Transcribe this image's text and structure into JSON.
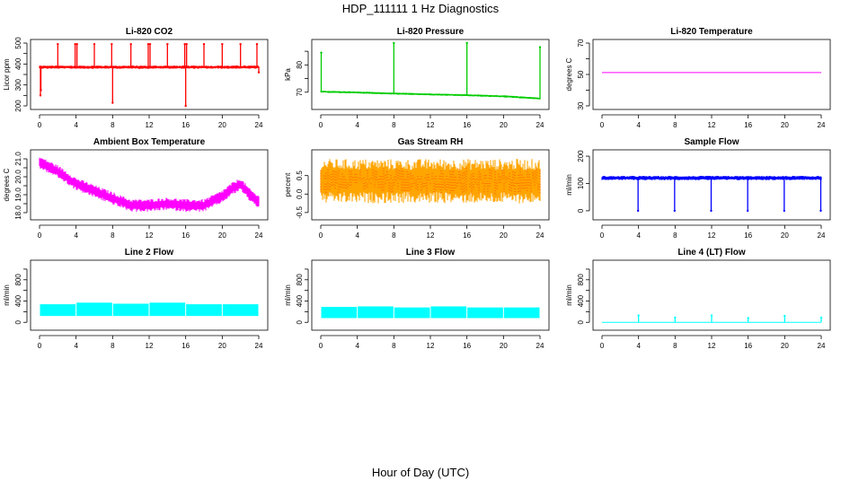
{
  "figure": {
    "title": "HDP_111111  1 Hz Diagnostics",
    "xlabel": "Hour of Day (UTC)"
  },
  "chart_data": [
    {
      "id": "co2",
      "type": "line",
      "title": "Li-820 CO2",
      "ylabel": "Licor ppm",
      "color": "#ff0000",
      "xlim": [
        0,
        24
      ],
      "ylim": [
        200,
        500
      ],
      "xticks": [
        0,
        4,
        8,
        12,
        16,
        20,
        24
      ],
      "yticks": [
        200,
        250,
        300,
        350,
        400,
        450,
        500
      ],
      "ytick_labels": [
        "200",
        "",
        "300",
        "",
        "400",
        "",
        "500"
      ],
      "baseline": [
        [
          0,
          385
        ],
        [
          4,
          385
        ],
        [
          8,
          385
        ],
        [
          12,
          385
        ],
        [
          16,
          385
        ],
        [
          20,
          385
        ],
        [
          24,
          385
        ]
      ],
      "band": 8,
      "spikes": [
        [
          0.1,
          250
        ],
        [
          0.15,
          275
        ],
        [
          2.0,
          495
        ],
        [
          3.9,
          495
        ],
        [
          4.1,
          495
        ],
        [
          6.0,
          495
        ],
        [
          7.9,
          495
        ],
        [
          8.0,
          215
        ],
        [
          10.0,
          495
        ],
        [
          11.9,
          495
        ],
        [
          12.1,
          495
        ],
        [
          14.0,
          495
        ],
        [
          15.9,
          495
        ],
        [
          16.0,
          200
        ],
        [
          16.1,
          495
        ],
        [
          18.0,
          495
        ],
        [
          20.0,
          495
        ],
        [
          22.0,
          495
        ],
        [
          23.8,
          495
        ],
        [
          24.0,
          360
        ]
      ]
    },
    {
      "id": "pressure",
      "type": "line",
      "title": "Li-820 Pressure",
      "ylabel": "kPa",
      "color": "#00cc00",
      "xlim": [
        0,
        24
      ],
      "ylim": [
        65,
        88
      ],
      "xticks": [
        0,
        4,
        8,
        12,
        16,
        20,
        24
      ],
      "yticks": [
        70,
        75,
        80,
        85
      ],
      "ytick_labels": [
        "70",
        "",
        "80",
        ""
      ],
      "baseline": [
        [
          0,
          70.2
        ],
        [
          4,
          69.9
        ],
        [
          8,
          69.5
        ],
        [
          12,
          69.2
        ],
        [
          16,
          68.9
        ],
        [
          20,
          68.5
        ],
        [
          24,
          67.7
        ]
      ],
      "band": 0.4,
      "spikes": [
        [
          0.05,
          84.5
        ],
        [
          8.0,
          88
        ],
        [
          16.0,
          88
        ],
        [
          24.0,
          86.5
        ]
      ]
    },
    {
      "id": "licor_temp",
      "type": "line",
      "title": "Li-820 Temperature",
      "ylabel": "degrees C",
      "color": "#ff00ff",
      "xlim": [
        0,
        24
      ],
      "ylim": [
        30,
        70
      ],
      "xticks": [
        0,
        4,
        8,
        12,
        16,
        20,
        24
      ],
      "yticks": [
        30,
        40,
        50,
        60,
        70
      ],
      "ytick_labels": [
        "30",
        "",
        "50",
        "",
        "70"
      ],
      "baseline": [
        [
          0,
          51.2
        ],
        [
          24,
          51.2
        ]
      ],
      "band": 0,
      "spikes": []
    },
    {
      "id": "box_temp",
      "type": "line",
      "title": "Ambient Box Temperature",
      "ylabel": "degrees C",
      "color": "#ff00ff",
      "xlim": [
        0,
        24
      ],
      "ylim": [
        17.8,
        21.3
      ],
      "xticks": [
        0,
        4,
        8,
        12,
        16,
        20,
        24
      ],
      "yticks": [
        18.0,
        18.5,
        19.0,
        19.5,
        20.0,
        20.5,
        21.0
      ],
      "ytick_labels": [
        "18.0",
        "",
        "19.0",
        "",
        "20.0",
        "",
        "21.0"
      ],
      "baseline": [
        [
          0,
          20.8
        ],
        [
          2,
          20.3
        ],
        [
          4,
          19.6
        ],
        [
          6,
          19.2
        ],
        [
          8,
          18.8
        ],
        [
          10,
          18.4
        ],
        [
          12,
          18.4
        ],
        [
          14,
          18.5
        ],
        [
          16,
          18.4
        ],
        [
          18,
          18.4
        ],
        [
          20,
          18.9
        ],
        [
          21,
          19.3
        ],
        [
          22,
          19.6
        ],
        [
          23,
          19.0
        ],
        [
          24,
          18.6
        ]
      ],
      "band": 0.35,
      "spikes": []
    },
    {
      "id": "rh",
      "type": "line",
      "title": "Gas Stream RH",
      "ylabel": "percent",
      "color": "#ffa500",
      "color2": "#ff0000",
      "xlim": [
        0,
        24
      ],
      "ylim": [
        -0.6,
        1.1
      ],
      "xticks": [
        0,
        4,
        8,
        12,
        16,
        20,
        24
      ],
      "yticks": [
        -0.5,
        0.0,
        0.5
      ],
      "ytick_labels": [
        "-0.5",
        "0.0",
        "0.5"
      ],
      "baseline": [
        [
          0,
          0.35
        ],
        [
          24,
          0.35
        ]
      ],
      "band": 0.6,
      "spikes": []
    },
    {
      "id": "sample_flow",
      "type": "line",
      "title": "Sample Flow",
      "ylabel": "ml/min",
      "color": "#0000ff",
      "xlim": [
        0,
        24
      ],
      "ylim": [
        -20,
        210
      ],
      "xticks": [
        0,
        4,
        8,
        12,
        16,
        20,
        24
      ],
      "yticks": [
        0,
        100,
        200
      ],
      "ytick_labels": [
        "0",
        "100",
        "200"
      ],
      "baseline": [
        [
          0,
          120
        ],
        [
          24,
          120
        ]
      ],
      "band": 8,
      "spikes": [
        [
          3.95,
          0
        ],
        [
          7.95,
          0
        ],
        [
          11.95,
          0
        ],
        [
          15.95,
          0
        ],
        [
          19.95,
          0
        ],
        [
          23.95,
          0
        ]
      ]
    },
    {
      "id": "line2",
      "type": "line",
      "title": "Line 2 Flow",
      "ylabel": "ml/min",
      "color": "#00ffff",
      "xlim": [
        0,
        24
      ],
      "ylim": [
        -80,
        1100
      ],
      "xticks": [
        0,
        4,
        8,
        12,
        16,
        20,
        24
      ],
      "yticks": [
        0,
        200,
        400,
        600,
        800,
        1000
      ],
      "ytick_labels": [
        "0",
        "",
        "400",
        "",
        "800",
        ""
      ],
      "segments": [
        [
          0,
          4,
          120,
          340
        ],
        [
          4,
          8,
          120,
          370
        ],
        [
          8,
          12,
          120,
          350
        ],
        [
          12,
          16,
          120,
          370
        ],
        [
          16,
          20,
          120,
          340
        ],
        [
          20,
          24,
          120,
          340
        ]
      ],
      "spikes": []
    },
    {
      "id": "line3",
      "type": "line",
      "title": "Line 3 Flow",
      "ylabel": "ml/min",
      "color": "#00ffff",
      "xlim": [
        0,
        24
      ],
      "ylim": [
        -80,
        1100
      ],
      "xticks": [
        0,
        4,
        8,
        12,
        16,
        20,
        24
      ],
      "yticks": [
        0,
        200,
        400,
        600,
        800,
        1000
      ],
      "ytick_labels": [
        "0",
        "",
        "400",
        "",
        "800",
        ""
      ],
      "segments": [
        [
          0,
          4,
          80,
          290
        ],
        [
          4,
          8,
          80,
          300
        ],
        [
          8,
          12,
          80,
          280
        ],
        [
          12,
          16,
          80,
          300
        ],
        [
          16,
          20,
          80,
          280
        ],
        [
          20,
          24,
          80,
          280
        ]
      ],
      "spikes": []
    },
    {
      "id": "line4",
      "type": "line",
      "title": "Line 4 (LT) Flow",
      "ylabel": "ml/min",
      "color": "#00ffff",
      "xlim": [
        0,
        24
      ],
      "ylim": [
        -80,
        1100
      ],
      "xticks": [
        0,
        4,
        8,
        12,
        16,
        20,
        24
      ],
      "yticks": [
        0,
        200,
        400,
        600,
        800,
        1000
      ],
      "ytick_labels": [
        "0",
        "",
        "400",
        "",
        "800",
        ""
      ],
      "baseline": [
        [
          0,
          0
        ],
        [
          24,
          0
        ]
      ],
      "band": 0,
      "spikes": [
        [
          4.0,
          130
        ],
        [
          8.0,
          90
        ],
        [
          12.0,
          130
        ],
        [
          16.0,
          80
        ],
        [
          20.0,
          120
        ],
        [
          24.0,
          90
        ]
      ]
    }
  ]
}
